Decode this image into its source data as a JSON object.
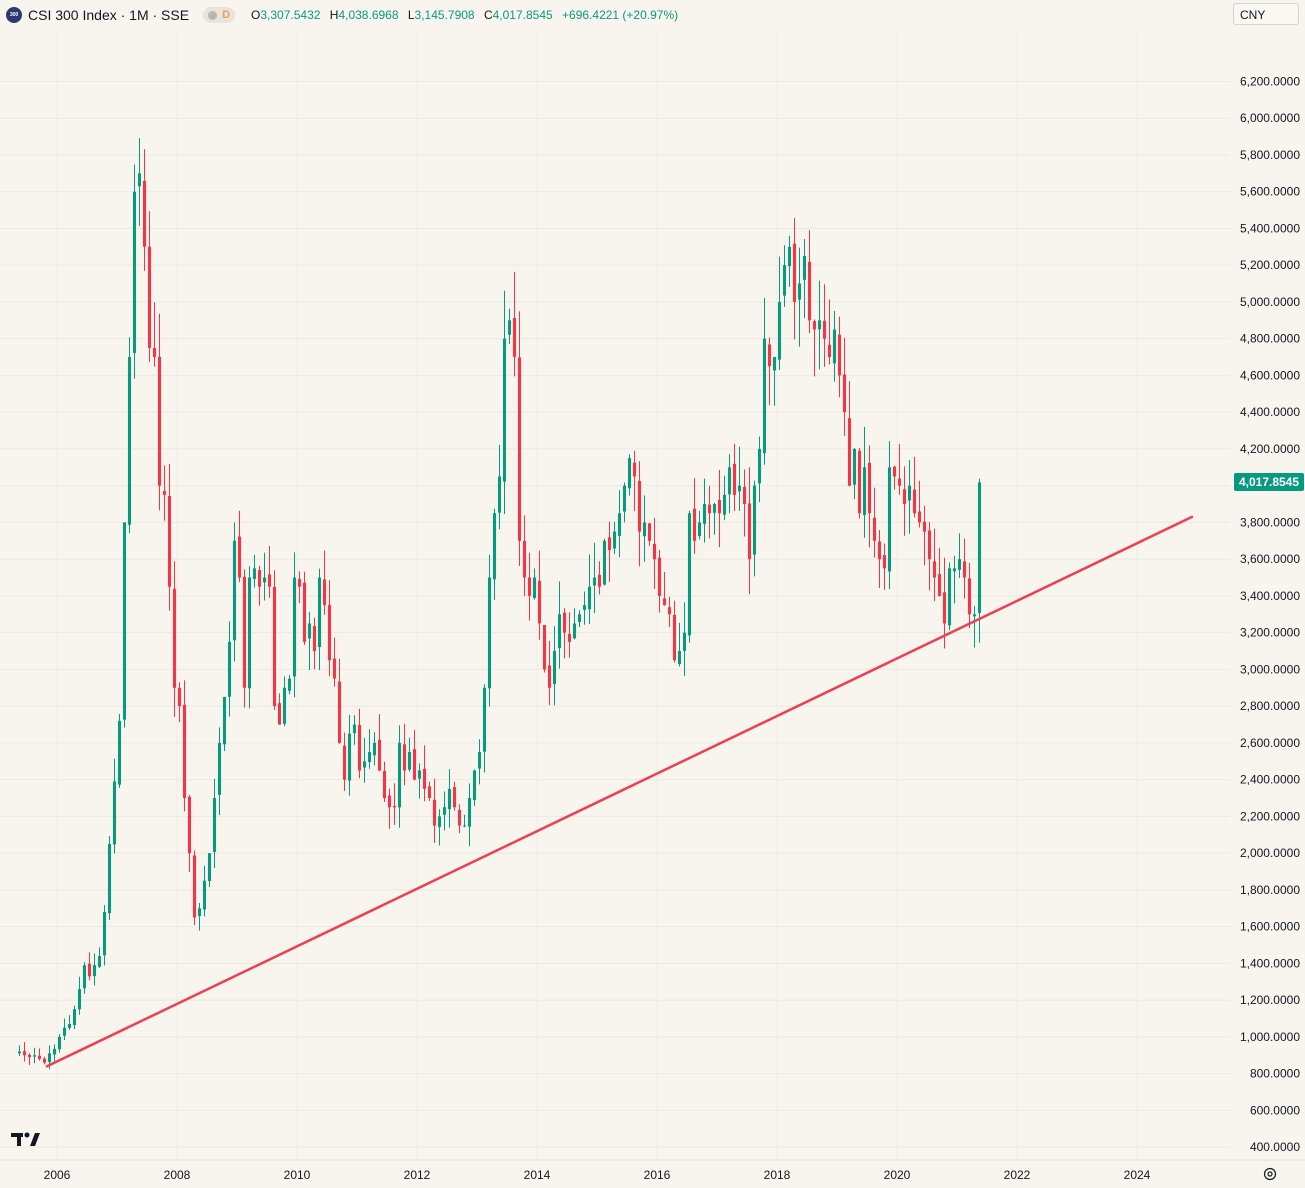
{
  "header": {
    "title": "CSI 300 Index · 1M · SSE",
    "logo_text": "300",
    "interval_flag": "D",
    "open_label": "O",
    "open": "3,307.5432",
    "high_label": "H",
    "high": "4,038.6968",
    "low_label": "L",
    "low": "3,145.7908",
    "close_label": "C",
    "close": "4,017.8545",
    "change": "+696.4221 (+20.97%)"
  },
  "currency": "CNY",
  "last_price_label": "4,017.8545",
  "colors": {
    "up": "#089981",
    "down": "#f23645",
    "trendline": "#ef3e52",
    "background": "#f8f5ee"
  },
  "chart_data": {
    "type": "candlestick",
    "interval": "monthly",
    "y_ticks": [
      400,
      600,
      800,
      1000,
      1200,
      1400,
      1600,
      1800,
      2000,
      2200,
      2400,
      2600,
      2800,
      3000,
      3200,
      3400,
      3600,
      3800,
      4000,
      4200,
      4400,
      4600,
      4800,
      5000,
      5200,
      5400,
      5600,
      5800,
      6000,
      6200
    ],
    "y_tick_labels": [
      "400.0000",
      "600.0000",
      "800.0000",
      "1,000.0000",
      "1,200.0000",
      "1,400.0000",
      "1,600.0000",
      "1,800.0000",
      "2,000.0000",
      "2,200.0000",
      "2,400.0000",
      "2,600.0000",
      "2,800.0000",
      "3,000.0000",
      "3,200.0000",
      "3,400.0000",
      "3,600.0000",
      "3,800.0000",
      "4,000.0000",
      "4,200.0000",
      "4,400.0000",
      "4,600.0000",
      "4,800.0000",
      "5,000.0000",
      "5,200.0000",
      "5,400.0000",
      "5,600.0000",
      "5,800.0000",
      "6,000.0000",
      "6,200.0000"
    ],
    "ylim": [
      330,
      6480
    ],
    "x_ticks": [
      2006,
      2008,
      2010,
      2012,
      2014,
      2016,
      2018,
      2020,
      2022,
      2024
    ],
    "x_tick_labels": [
      "2006",
      "2008",
      "2010",
      "2012",
      "2014",
      "2016",
      "2018",
      "2020",
      "2022",
      "2024"
    ],
    "xlim": [
      2005.05,
      2025.55
    ],
    "start": "2005-05",
    "closes": [
      920,
      900,
      890,
      900,
      880,
      860,
      910,
      935,
      1000,
      1050,
      1070,
      1150,
      1260,
      1390,
      1330,
      1390,
      1440,
      1680,
      2050,
      2390,
      2720,
      3800,
      4700,
      5600,
      5700,
      5300,
      4750,
      4700,
      4000,
      3950,
      3450,
      2900,
      2800,
      2300,
      2000,
      1650,
      1700,
      1850,
      2000,
      2300,
      2600,
      2850,
      3150,
      3700,
      3500,
      2900,
      3500,
      3550,
      3450,
      3500,
      3450,
      2800,
      2700,
      2900,
      2950,
      3500,
      3450,
      3150,
      3250,
      3100,
      3500,
      3350,
      3050,
      2950,
      2600,
      2400,
      2650,
      2700,
      2450,
      2500,
      2550,
      2600,
      2450,
      2300,
      2250,
      2250,
      2600,
      2450,
      2550,
      2400,
      2450,
      2350,
      2300,
      2150,
      2200,
      2250,
      2350,
      2250,
      2150,
      2150,
      2300,
      2450,
      2550,
      2900,
      3500,
      3850,
      4050,
      4800,
      4900,
      4700,
      3700,
      3500,
      3400,
      3500,
      3250,
      3000,
      2900,
      3100,
      3300,
      3200,
      3150,
      3250,
      3300,
      3350,
      3450,
      3500,
      3450,
      3700,
      3650,
      3750,
      3850,
      4000,
      4150,
      4050,
      3750,
      3800,
      3700,
      3600,
      3400,
      3350,
      3300,
      3050,
      3100,
      3200,
      3850,
      3700,
      3800,
      3900,
      3850,
      3900,
      3850,
      3950,
      4100,
      3950,
      4000,
      3900,
      3600,
      4000,
      4200,
      4800,
      4650,
      4700,
      5000,
      5200,
      5300,
      5000,
      5100,
      5250,
      4900,
      4850,
      4900,
      4800,
      4700,
      4850,
      4600,
      4400,
      4000,
      4200,
      3850,
      4100,
      3850,
      3700,
      3600,
      3550,
      4100,
      4050,
      4000,
      3900,
      4000,
      3850,
      3800,
      3750,
      3600,
      3500,
      3400,
      3250,
      3550,
      3550,
      3600,
      3500,
      3300,
      3300,
      4018
    ],
    "trendline": {
      "from": {
        "date": "2005-11",
        "value": 840
      },
      "to": {
        "date": "2024-12",
        "value": 3830
      }
    },
    "last_price": 4017.8545
  }
}
